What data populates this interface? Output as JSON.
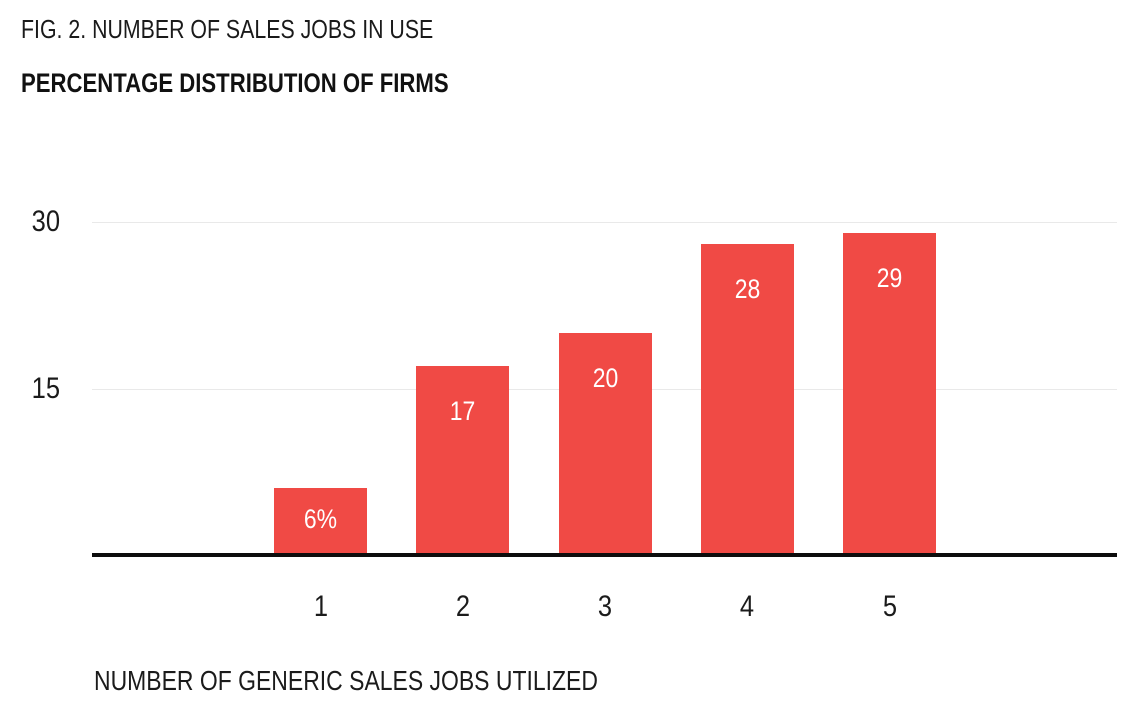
{
  "figure": {
    "title": "FIG. 2. NUMBER OF SALES JOBS IN USE",
    "subtitle": "PERCENTAGE DISTRIBUTION OF FIRMS",
    "x_axis_title": "NUMBER OF GENERIC SALES JOBS UTILIZED"
  },
  "chart_data": {
    "type": "bar",
    "title": "FIG. 2. NUMBER OF SALES JOBS IN USE",
    "subtitle": "PERCENTAGE DISTRIBUTION OF FIRMS",
    "categories": [
      "1",
      "2",
      "3",
      "4",
      "5"
    ],
    "values": [
      6,
      17,
      20,
      28,
      29
    ],
    "bar_labels": [
      "6%",
      "17",
      "20",
      "28",
      "29"
    ],
    "xlabel": "NUMBER OF GENERIC SALES JOBS UTILIZED",
    "ylabel": "",
    "yticks": [
      15,
      30
    ],
    "ylim": [
      0,
      32
    ],
    "legend": "none",
    "grid": "horizontal-light",
    "value_label_position": "inside-top",
    "colors": {
      "bar": "#f04a45",
      "bar_label": "#ffffff",
      "text": "#1b1b1b",
      "gridline": "#e9e9e9",
      "axis_line": "#0d0d0d",
      "background": "#ffffff"
    }
  }
}
